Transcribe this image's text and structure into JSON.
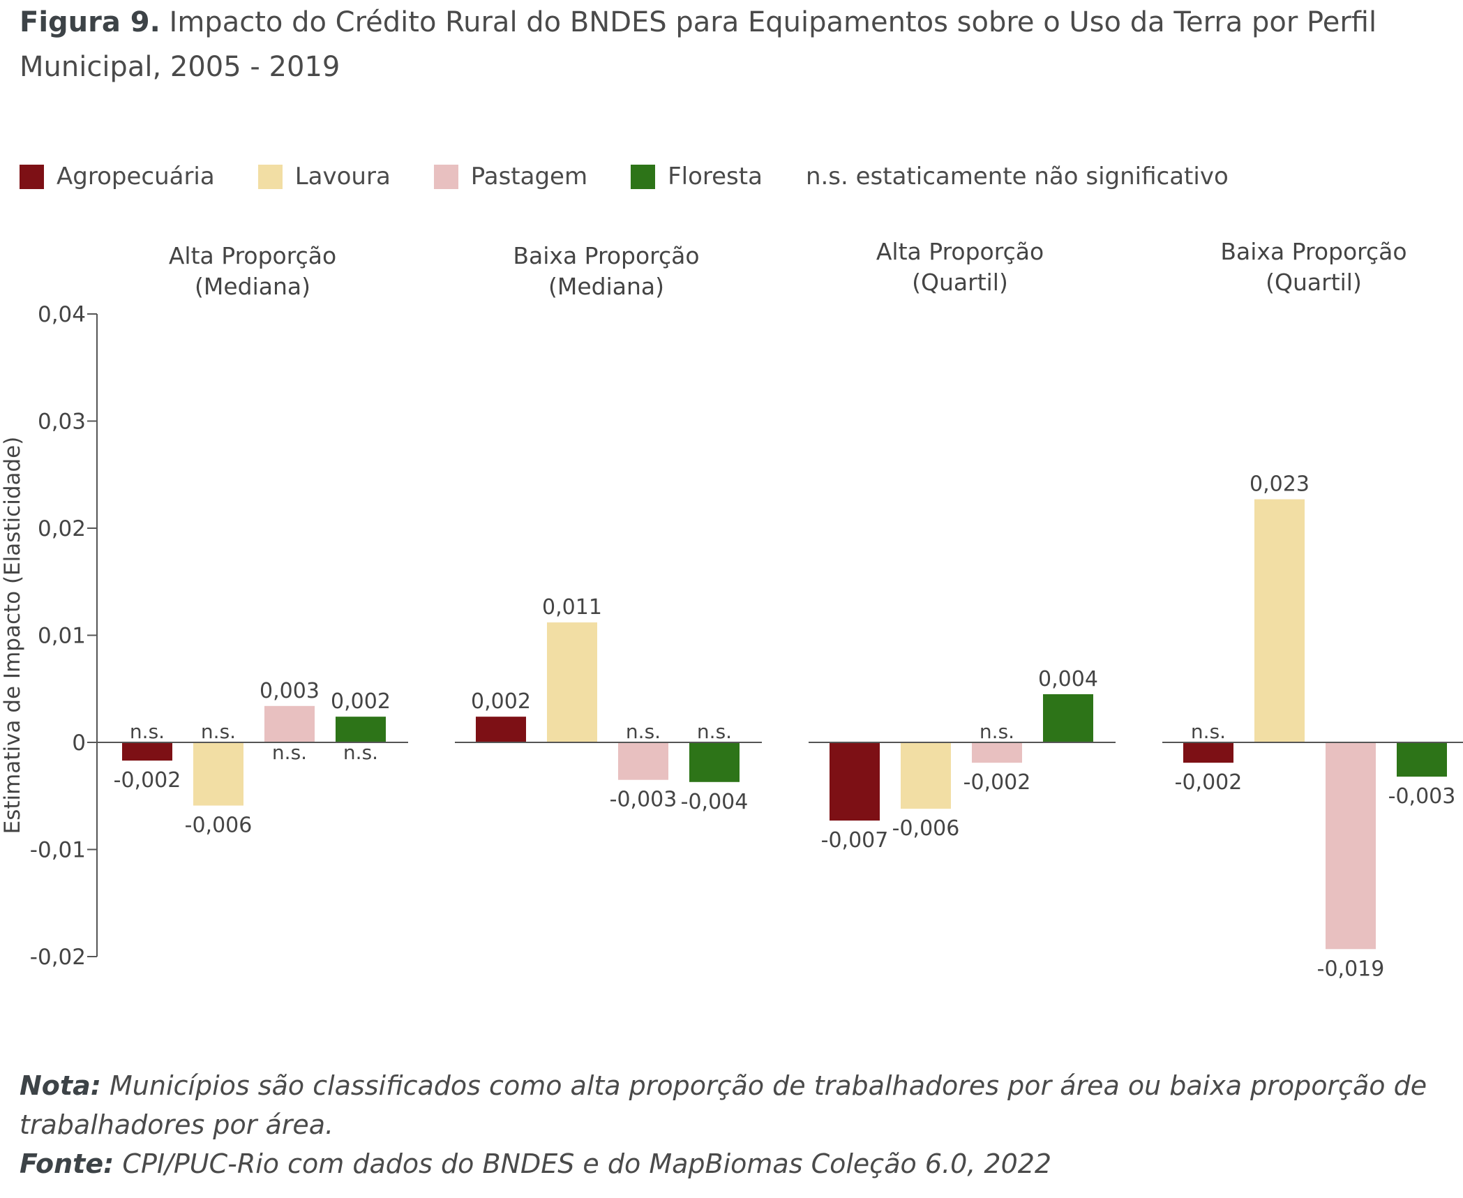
{
  "title": {
    "prefix": "Figura 9.",
    "text": "Impacto do Crédito Rural do BNDES para Equipamentos sobre o Uso da Terra por Perfil Municipal, 2005 - 2019"
  },
  "legend": {
    "items": [
      {
        "label": "Agropecuária",
        "color": "#7d1015"
      },
      {
        "label": "Lavoura",
        "color": "#f2dea4"
      },
      {
        "label": "Pastagem",
        "color": "#e8c0c0"
      },
      {
        "label": "Floresta",
        "color": "#2d7418"
      }
    ],
    "note": "n.s. estaticamente não significativo"
  },
  "chart_data": {
    "type": "bar",
    "ylabel": "Estimativa de Impacto (Elasticidade)",
    "ylim": [
      -0.02,
      0.04
    ],
    "yticks": [
      {
        "value": 0.04,
        "label": "0,04"
      },
      {
        "value": 0.03,
        "label": "0,03"
      },
      {
        "value": 0.02,
        "label": "0,02"
      },
      {
        "value": 0.01,
        "label": "0,01"
      },
      {
        "value": 0,
        "label": "0"
      },
      {
        "value": -0.01,
        "label": "-0,01"
      },
      {
        "value": -0.02,
        "label": "-0,02"
      }
    ],
    "series": [
      "Agropecuária",
      "Lavoura",
      "Pastagem",
      "Floresta"
    ],
    "panels": [
      {
        "title_line1": "Alta Proporção",
        "title_line2": "(Mediana)",
        "bars": [
          {
            "series": "Agropecuária",
            "value": -0.0017,
            "label": "-0,002",
            "ns": "n.s."
          },
          {
            "series": "Lavoura",
            "value": -0.0059,
            "label": "-0,006",
            "ns": "n.s."
          },
          {
            "series": "Pastagem",
            "value": 0.0034,
            "label": "0,003",
            "ns": "n.s."
          },
          {
            "series": "Floresta",
            "value": 0.0024,
            "label": "0,002",
            "ns": "n.s."
          }
        ]
      },
      {
        "title_line1": "Baixa Proporção",
        "title_line2": "(Mediana)",
        "bars": [
          {
            "series": "Agropecuária",
            "value": 0.0024,
            "label": "0,002",
            "ns": ""
          },
          {
            "series": "Lavoura",
            "value": 0.0112,
            "label": "0,011",
            "ns": ""
          },
          {
            "series": "Pastagem",
            "value": -0.0035,
            "label": "-0,003",
            "ns": "n.s."
          },
          {
            "series": "Floresta",
            "value": -0.0037,
            "label": "-0,004",
            "ns": "n.s."
          }
        ]
      },
      {
        "title_line1": "Alta Proporção",
        "title_line2": "(Quartil)",
        "bars": [
          {
            "series": "Agropecuária",
            "value": -0.0073,
            "label": "-0,007",
            "ns": ""
          },
          {
            "series": "Lavoura",
            "value": -0.0062,
            "label": "-0,006",
            "ns": ""
          },
          {
            "series": "Pastagem",
            "value": -0.0019,
            "label": "-0,002",
            "ns": "n.s."
          },
          {
            "series": "Floresta",
            "value": 0.0045,
            "label": "0,004",
            "ns": ""
          }
        ]
      },
      {
        "title_line1": "Baixa Proporção",
        "title_line2": "(Quartil)",
        "bars": [
          {
            "series": "Agropecuária",
            "value": -0.0019,
            "label": "-0,002",
            "ns": "n.s."
          },
          {
            "series": "Lavoura",
            "value": 0.0227,
            "label": "0,023",
            "ns": ""
          },
          {
            "series": "Pastagem",
            "value": -0.0193,
            "label": "-0,019",
            "ns": ""
          },
          {
            "series": "Floresta",
            "value": -0.0032,
            "label": "-0,003",
            "ns": ""
          }
        ]
      }
    ]
  },
  "notes": {
    "nota_label": "Nota:",
    "nota_text": "Municípios são classificados como alta proporção de trabalhadores por área ou baixa proporção de trabalhadores por área.",
    "fonte_label": "Fonte:",
    "fonte_text": "CPI/PUC-Rio com dados do BNDES e do MapBiomas Coleção 6.0, 2022"
  }
}
